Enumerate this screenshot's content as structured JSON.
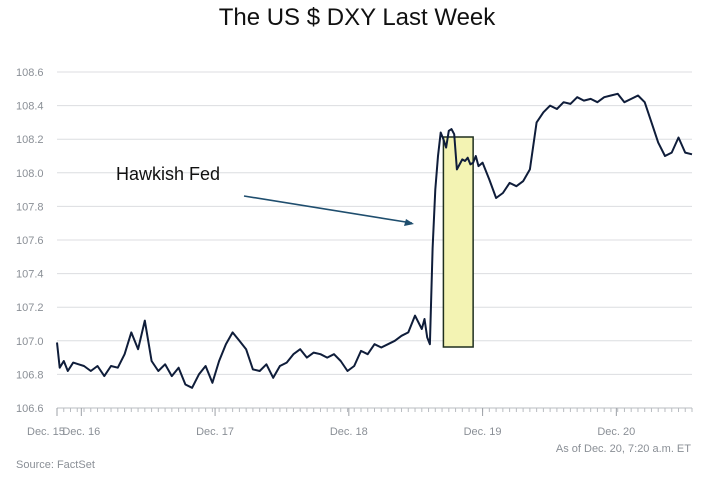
{
  "chart_data": {
    "type": "line",
    "title": "The US $ DXY Last Week",
    "ylim": [
      106.6,
      108.6
    ],
    "yticks": [
      106.6,
      106.8,
      107.0,
      107.2,
      107.4,
      107.6,
      107.8,
      108.0,
      108.2,
      108.4,
      108.6
    ],
    "ytick_labels": [
      "106.6",
      "106.8",
      "107.0",
      "107.2",
      "107.4",
      "107.6",
      "107.8",
      "108.0",
      "108.2",
      "108.4",
      "108.6"
    ],
    "xlim": [
      0,
      4.7
    ],
    "xticks": [
      0,
      0.18,
      1.17,
      2.16,
      3.15,
      4.14
    ],
    "xtick_labels": [
      "Dec. 15",
      "Dec. 16",
      "Dec. 17",
      "Dec. 18",
      "Dec. 19",
      "Dec. 20"
    ],
    "grid": true,
    "series": [
      {
        "color": "#0f1d3a",
        "x": [
          0,
          0.02,
          0.05,
          0.08,
          0.12,
          0.16,
          0.2,
          0.25,
          0.3,
          0.35,
          0.4,
          0.45,
          0.5,
          0.55,
          0.6,
          0.65,
          0.7,
          0.75,
          0.8,
          0.85,
          0.9,
          0.95,
          1.0,
          1.05,
          1.1,
          1.15,
          1.2,
          1.25,
          1.3,
          1.35,
          1.4,
          1.45,
          1.5,
          1.55,
          1.6,
          1.65,
          1.7,
          1.75,
          1.8,
          1.85,
          1.9,
          1.95,
          2.0,
          2.05,
          2.1,
          2.15,
          2.2,
          2.25,
          2.3,
          2.35,
          2.4,
          2.45,
          2.5,
          2.55,
          2.6,
          2.65,
          2.7,
          2.72,
          2.74,
          2.76,
          2.78,
          2.8,
          2.82,
          2.84,
          2.86,
          2.88,
          2.9,
          2.92,
          2.94,
          2.96,
          2.98,
          3.0,
          3.02,
          3.04,
          3.06,
          3.08,
          3.1,
          3.12,
          3.15,
          3.2,
          3.25,
          3.3,
          3.35,
          3.4,
          3.45,
          3.5,
          3.55,
          3.6,
          3.65,
          3.7,
          3.75,
          3.8,
          3.85,
          3.9,
          3.95,
          4.0,
          4.05,
          4.1,
          4.15,
          4.2,
          4.25,
          4.3,
          4.35,
          4.4,
          4.45,
          4.5,
          4.55,
          4.6,
          4.65,
          4.7
        ],
        "y": [
          106.99,
          106.84,
          106.88,
          106.82,
          106.87,
          106.86,
          106.85,
          106.82,
          106.85,
          106.79,
          106.85,
          106.84,
          106.92,
          107.05,
          106.95,
          107.12,
          106.88,
          106.82,
          106.86,
          106.79,
          106.84,
          106.74,
          106.72,
          106.8,
          106.85,
          106.75,
          106.88,
          106.98,
          107.05,
          107.0,
          106.95,
          106.83,
          106.82,
          106.86,
          106.78,
          106.85,
          106.87,
          106.92,
          106.95,
          106.9,
          106.93,
          106.92,
          106.9,
          106.92,
          106.88,
          106.82,
          106.85,
          106.94,
          106.92,
          106.98,
          106.96,
          106.98,
          107.0,
          107.03,
          107.05,
          107.15,
          107.07,
          107.13,
          107.02,
          106.98,
          107.55,
          107.9,
          108.1,
          108.24,
          108.2,
          108.15,
          108.25,
          108.26,
          108.23,
          108.02,
          108.05,
          108.08,
          108.07,
          108.09,
          108.05,
          108.06,
          108.1,
          108.04,
          108.06,
          107.96,
          107.85,
          107.88,
          107.94,
          107.92,
          107.95,
          108.02,
          108.3,
          108.36,
          108.4,
          108.38,
          108.42,
          108.41,
          108.45,
          108.43,
          108.44,
          108.42,
          108.45,
          108.46,
          108.47,
          108.42,
          108.44,
          108.46,
          108.42,
          108.3,
          108.18,
          108.1,
          108.12,
          108.21,
          108.12,
          108.11
        ]
      }
    ],
    "annotations": [
      {
        "text": "Hawkish Fed"
      }
    ],
    "highlight_x": [
      2.86,
      3.08
    ],
    "highlight_color": "#f3f3b3",
    "footer_right": "As of Dec. 20, 7:20 a.m. ET",
    "source": "Source: FactSet"
  }
}
